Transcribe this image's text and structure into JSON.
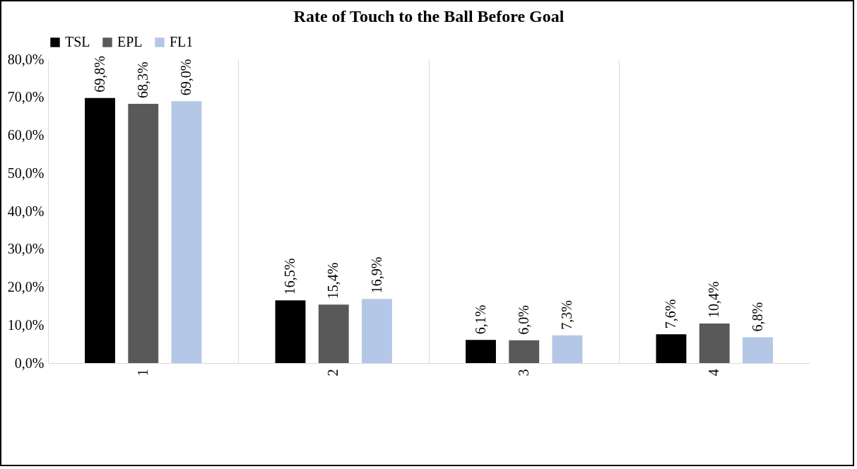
{
  "chart_data": {
    "type": "bar",
    "title": "Rate of Touch to the Ball Before Goal",
    "categories": [
      "1",
      "2",
      "3",
      "4"
    ],
    "series": [
      {
        "name": "TSL",
        "color": "#000000",
        "values": [
          69.8,
          16.5,
          6.1,
          7.6
        ],
        "value_labels": [
          "69,8%",
          "16,5%",
          "6,1%",
          "7,6%"
        ]
      },
      {
        "name": "EPL",
        "color": "#595959",
        "values": [
          68.3,
          15.4,
          6.0,
          10.4
        ],
        "value_labels": [
          "68,3%",
          "15,4%",
          "6,0%",
          "10,4%"
        ]
      },
      {
        "name": "FL1",
        "color": "#b4c7e7",
        "values": [
          69.0,
          16.9,
          7.3,
          6.8
        ],
        "value_labels": [
          "69,0%",
          "16,9%",
          "7,3%",
          "6,8%"
        ]
      }
    ],
    "ylim": [
      0,
      80
    ],
    "yticks": [
      {
        "value": 0,
        "label": "0,0%"
      },
      {
        "value": 10,
        "label": "10,0%"
      },
      {
        "value": 20,
        "label": "20,0%"
      },
      {
        "value": 30,
        "label": "30,0%"
      },
      {
        "value": 40,
        "label": "40,0%"
      },
      {
        "value": 50,
        "label": "50,0%"
      },
      {
        "value": 60,
        "label": "60,0%"
      },
      {
        "value": 70,
        "label": "70,0%"
      },
      {
        "value": 80,
        "label": "80,0%"
      }
    ],
    "grid": "x",
    "legend": "top"
  }
}
